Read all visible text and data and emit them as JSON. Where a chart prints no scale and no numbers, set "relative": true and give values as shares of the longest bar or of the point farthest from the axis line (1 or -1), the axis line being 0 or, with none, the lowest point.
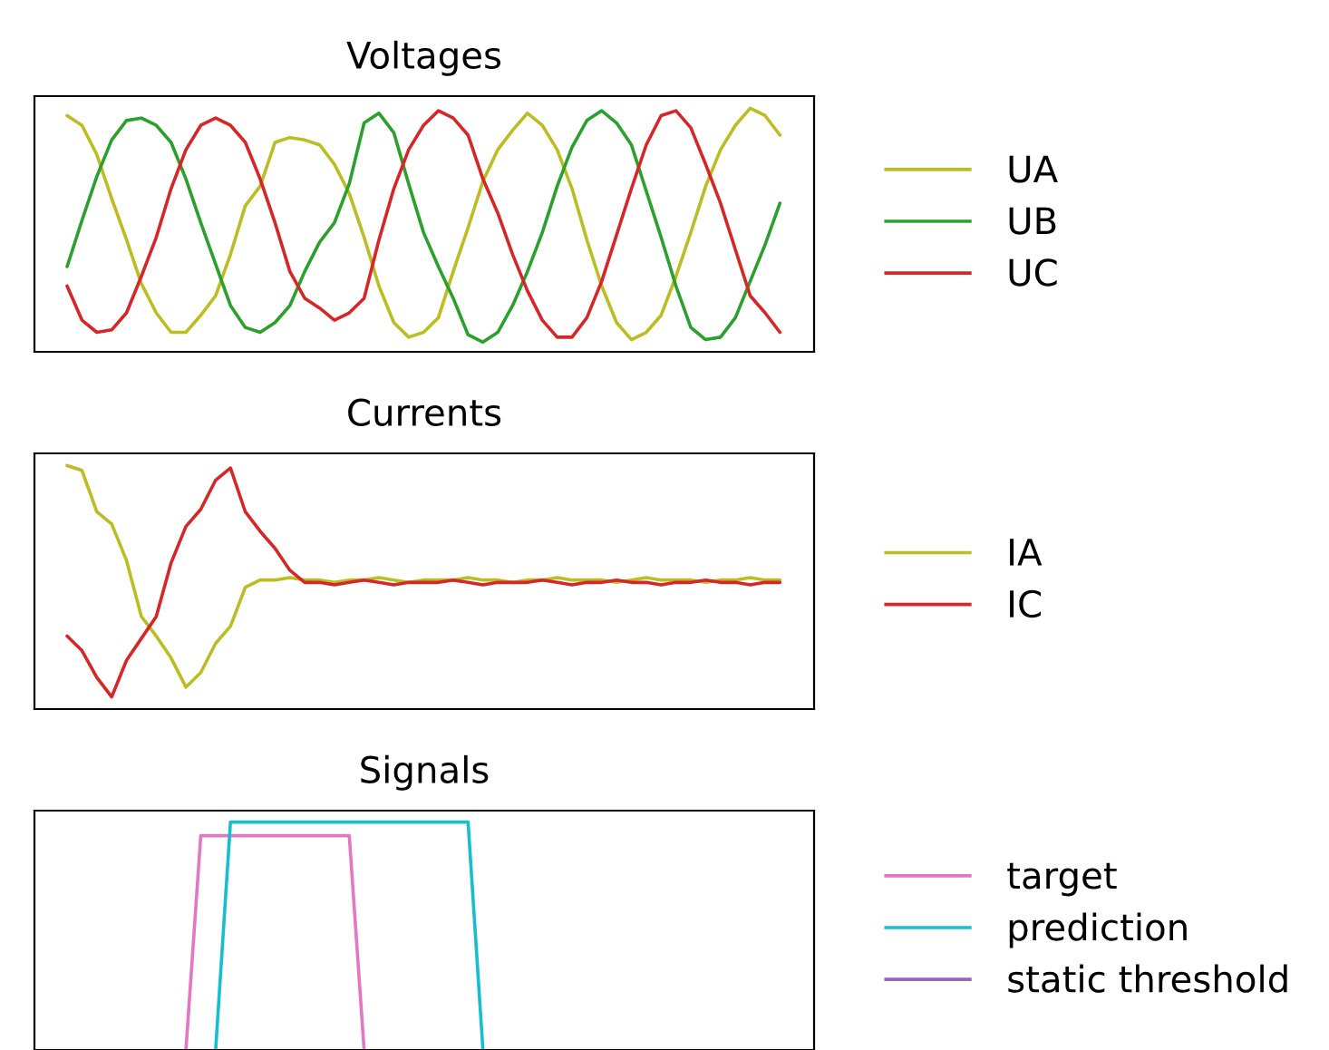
{
  "chart_data": [
    {
      "type": "line",
      "title": "Voltages",
      "relative": true,
      "legend": "right",
      "grid": false,
      "categories": [
        null,
        null,
        null,
        null,
        null,
        null,
        null,
        null,
        null,
        null,
        null,
        null,
        null,
        null,
        null,
        null,
        null,
        null,
        null,
        null,
        null,
        null,
        null,
        null,
        null,
        null,
        null,
        null,
        null,
        null,
        null,
        null,
        null,
        null,
        null,
        null,
        null,
        null,
        null,
        null,
        null,
        null,
        null,
        null,
        null,
        null,
        null,
        null,
        null
      ],
      "series": [
        {
          "name": "UA",
          "color": "#bcbd22",
          "values": [
            0.97,
            0.93,
            0.81,
            0.63,
            0.46,
            0.28,
            0.16,
            0.08,
            0.08,
            0.15,
            0.23,
            0.4,
            0.6,
            0.68,
            0.86,
            0.88,
            0.87,
            0.85,
            0.77,
            0.65,
            0.47,
            0.27,
            0.12,
            0.06,
            0.08,
            0.14,
            0.33,
            0.51,
            0.7,
            0.83,
            0.91,
            0.98,
            0.93,
            0.83,
            0.67,
            0.46,
            0.27,
            0.12,
            0.05,
            0.08,
            0.15,
            0.31,
            0.49,
            0.68,
            0.83,
            0.93,
            1.0,
            0.97,
            0.89
          ]
        },
        {
          "name": "UB",
          "color": "#2ca02c",
          "values": [
            0.35,
            0.54,
            0.72,
            0.87,
            0.95,
            0.96,
            0.93,
            0.86,
            0.71,
            0.53,
            0.36,
            0.19,
            0.1,
            0.08,
            0.12,
            0.19,
            0.33,
            0.45,
            0.53,
            0.69,
            0.94,
            0.98,
            0.9,
            0.69,
            0.49,
            0.35,
            0.22,
            0.07,
            0.04,
            0.08,
            0.19,
            0.33,
            0.49,
            0.68,
            0.84,
            0.95,
            0.99,
            0.94,
            0.85,
            0.66,
            0.47,
            0.27,
            0.1,
            0.05,
            0.06,
            0.14,
            0.29,
            0.44,
            0.61
          ]
        },
        {
          "name": "UC",
          "color": "#d62728",
          "values": [
            0.27,
            0.13,
            0.08,
            0.09,
            0.16,
            0.31,
            0.47,
            0.67,
            0.83,
            0.93,
            0.96,
            0.93,
            0.86,
            0.71,
            0.53,
            0.33,
            0.22,
            0.18,
            0.13,
            0.16,
            0.22,
            0.46,
            0.67,
            0.83,
            0.93,
            0.99,
            0.96,
            0.89,
            0.71,
            0.57,
            0.4,
            0.25,
            0.13,
            0.06,
            0.06,
            0.14,
            0.29,
            0.48,
            0.67,
            0.85,
            0.97,
            0.99,
            0.92,
            0.77,
            0.61,
            0.42,
            0.23,
            0.16,
            0.08
          ]
        }
      ]
    },
    {
      "type": "line",
      "title": "Currents",
      "relative": true,
      "legend": "right",
      "grid": false,
      "categories": [
        null,
        null,
        null,
        null,
        null,
        null,
        null,
        null,
        null,
        null,
        null,
        null,
        null,
        null,
        null,
        null,
        null,
        null,
        null,
        null,
        null,
        null,
        null,
        null,
        null,
        null,
        null,
        null,
        null,
        null,
        null,
        null,
        null,
        null,
        null,
        null,
        null,
        null,
        null,
        null,
        null,
        null,
        null,
        null,
        null,
        null,
        null,
        null,
        null
      ],
      "series": [
        {
          "name": "IA",
          "color": "#bcbd22",
          "values": [
            1.0,
            0.98,
            0.81,
            0.76,
            0.61,
            0.38,
            0.3,
            0.21,
            0.09,
            0.15,
            0.27,
            0.34,
            0.5,
            0.53,
            0.53,
            0.54,
            0.53,
            0.53,
            0.52,
            0.53,
            0.53,
            0.54,
            0.53,
            0.52,
            0.53,
            0.53,
            0.53,
            0.54,
            0.53,
            0.53,
            0.52,
            0.53,
            0.53,
            0.54,
            0.53,
            0.53,
            0.53,
            0.52,
            0.53,
            0.54,
            0.53,
            0.53,
            0.53,
            0.52,
            0.53,
            0.53,
            0.54,
            0.53,
            0.53
          ]
        },
        {
          "name": "IC",
          "color": "#d62728",
          "values": [
            0.3,
            0.24,
            0.13,
            0.05,
            0.2,
            0.29,
            0.38,
            0.6,
            0.75,
            0.82,
            0.94,
            0.99,
            0.81,
            0.73,
            0.66,
            0.57,
            0.52,
            0.52,
            0.51,
            0.52,
            0.53,
            0.52,
            0.51,
            0.52,
            0.52,
            0.52,
            0.53,
            0.52,
            0.51,
            0.52,
            0.52,
            0.52,
            0.53,
            0.52,
            0.51,
            0.52,
            0.52,
            0.53,
            0.52,
            0.52,
            0.51,
            0.52,
            0.52,
            0.53,
            0.52,
            0.52,
            0.51,
            0.52,
            0.52
          ]
        }
      ]
    },
    {
      "type": "line",
      "title": "Signals",
      "relative": true,
      "legend": "right",
      "grid": false,
      "categories": [
        null,
        null,
        null,
        null,
        null,
        null,
        null,
        null,
        null,
        null,
        null,
        null,
        null,
        null,
        null,
        null,
        null,
        null,
        null,
        null,
        null,
        null,
        null,
        null,
        null,
        null,
        null,
        null,
        null,
        null,
        null,
        null,
        null,
        null,
        null,
        null,
        null,
        null,
        null,
        null,
        null,
        null,
        null,
        null,
        null,
        null,
        null,
        null,
        null
      ],
      "series": [
        {
          "name": "target",
          "color": "#e377c2",
          "values": [
            null,
            null,
            null,
            null,
            null,
            null,
            null,
            null,
            0,
            0.94,
            0.94,
            0.94,
            0.94,
            0.94,
            0.94,
            0.94,
            0.94,
            0.94,
            0.94,
            0.94,
            0,
            null,
            null,
            null,
            null,
            null,
            null,
            null,
            null,
            null,
            null,
            null,
            null,
            null,
            null,
            null,
            null,
            null,
            null,
            null,
            null,
            null,
            null,
            null,
            null,
            null,
            null,
            null,
            null
          ]
        },
        {
          "name": "prediction",
          "color": "#17becf",
          "values": [
            null,
            null,
            null,
            null,
            null,
            null,
            null,
            null,
            null,
            null,
            0,
            1,
            1,
            1,
            1,
            1,
            1,
            1,
            1,
            1,
            1,
            1,
            1,
            1,
            1,
            1,
            1,
            1,
            0,
            null,
            null,
            null,
            null,
            null,
            null,
            null,
            null,
            null,
            null,
            null,
            null,
            null,
            null,
            null,
            null,
            null,
            null,
            null,
            null
          ]
        },
        {
          "name": "static threshold",
          "color": "#9467bd",
          "values": [
            null,
            null,
            null,
            null,
            null,
            null,
            null,
            null,
            null,
            null,
            null,
            null,
            null,
            null,
            null,
            null,
            null,
            null,
            null,
            null,
            null,
            null,
            null,
            null,
            null,
            null,
            null,
            null,
            null,
            null,
            null,
            null,
            null,
            null,
            null,
            null,
            null,
            null,
            null,
            null,
            null,
            null,
            null,
            null,
            null,
            null,
            null,
            null,
            null
          ]
        }
      ]
    }
  ]
}
